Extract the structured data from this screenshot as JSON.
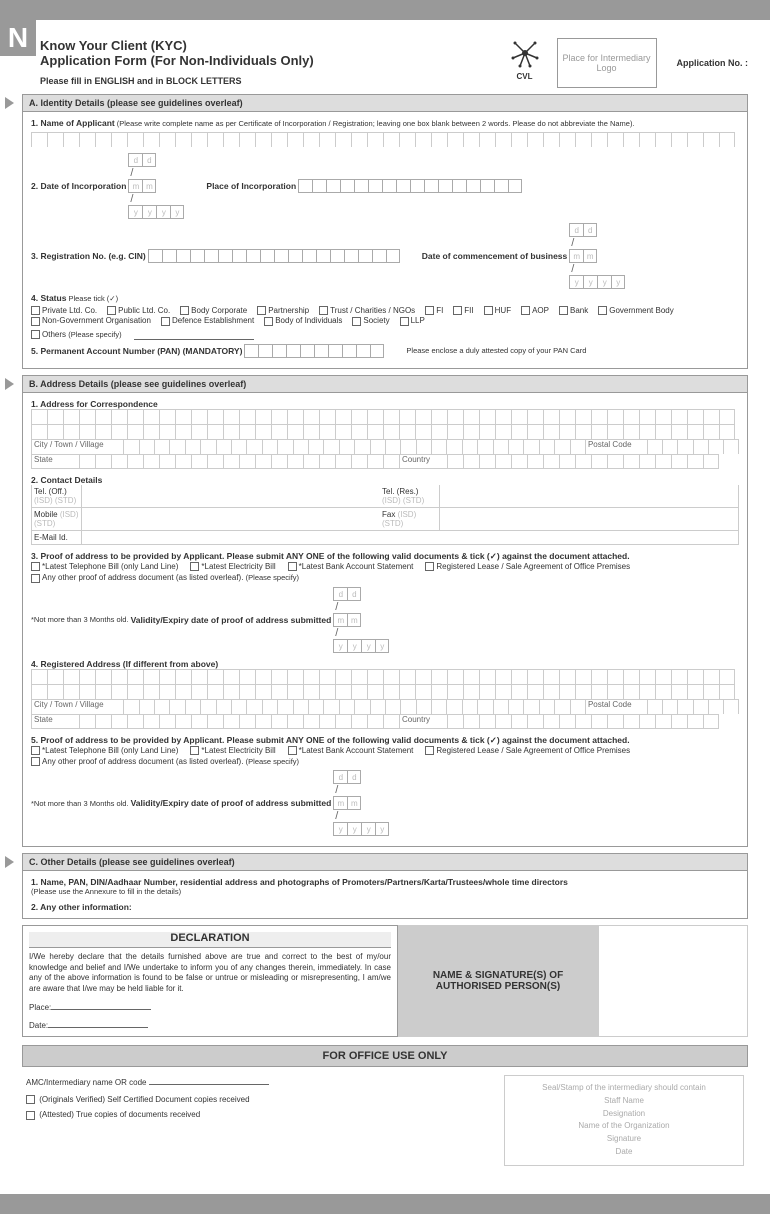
{
  "header": {
    "title": "Know Your Client (KYC)",
    "subtitle": "Application Form  (For Non-Individuals Only)",
    "instruction": "Please fill in ENGLISH and in BLOCK LETTERS",
    "logo_text": "CVL",
    "placeholder": "Place for Intermediary Logo",
    "app_no": "Application No. :"
  },
  "sectionA": {
    "title": "A. Identity Details (please see guidelines overleaf)",
    "f1": "1. Name of Applicant",
    "f1note": "(Please write complete name as per Certificate of Incorporation / Registration; leaving one box blank between 2 words. Please do not abbreviate the Name).",
    "f2": "2. Date of Incorporation",
    "f2b": "Place of Incorporation",
    "f3": "3. Registration No. (e.g. CIN)",
    "f3b": "Date of commencement of business",
    "f4": "4. Status",
    "f4note": "Please tick (✓)",
    "opts": [
      "Private Ltd. Co.",
      "Public Ltd. Co.",
      "Body Corporate",
      "Partnership",
      "Trust / Charities / NGOs",
      "FI",
      "FII",
      "HUF",
      "AOP",
      "Bank",
      "Government Body",
      "Non-Government Organisation",
      "Defence Establishment",
      "Body of Individuals",
      "Society",
      "LLP"
    ],
    "others": "Others",
    "others_note": "(Please specify)",
    "f5": "5. Permanent Account Number (PAN) (MANDATORY)",
    "f5note": "Please enclose a duly attested copy of your PAN Card"
  },
  "sectionB": {
    "title": "B. Address Details (please see guidelines overleaf)",
    "f1": "1. Address for Correspondence",
    "city": "City / Town / Village",
    "postal": "Postal Code",
    "state": "State",
    "country": "Country",
    "f2": "2. Contact Details",
    "tel_off": "Tel. (Off.)",
    "tel_res": "Tel. (Res.)",
    "mobile": "Mobile",
    "fax": "Fax",
    "email": "E-Mail Id.",
    "isd": "(ISD)",
    "std": "(STD)",
    "f3": "3. Proof of address to be provided by Applicant. Please submit ANY ONE of the following valid documents &  tick (✓) against the document attached.",
    "docs": [
      "*Latest Telephone Bill (only Land Line)",
      "*Latest Electricity Bill",
      "*Latest Bank Account Statement",
      "Registered Lease / Sale Agreement of Office Premises",
      "Any other proof of address document (as listed overleaf)."
    ],
    "specify": "(Please specify)",
    "validity_note": "*Not more than 3 Months old.",
    "validity": "Validity/Expiry date of proof of address submitted",
    "f4": "4. Registered Address (If different from above)",
    "f5": "5. Proof of address to be provided by Applicant. Please submit ANY ONE of the following valid documents &  tick (✓) against the document attached."
  },
  "sectionC": {
    "title": "C. Other Details (please see guidelines overleaf)",
    "f1": "1. Name, PAN, DIN/Aadhaar Number, residential address and photographs of Promoters/Partners/Karta/Trustees/whole time directors",
    "f1note": "(Please use the Annexure to fill in the details)",
    "f2": "2. Any other information:"
  },
  "declaration": {
    "title": "DECLARATION",
    "text": "I/We hereby declare that the details furnished above are true and correct to the best of my/our knowledge and belief and I/We undertake to inform you of any changes therein, immediately. In case any of the above information is found to be false or untrue or misleading or misrepresenting, I am/we are aware that I/we may be held liable for it.",
    "place": "Place:",
    "date": "Date:",
    "sig": "NAME & SIGNATURE(S) OF AUTHORISED PERSON(S)"
  },
  "office": {
    "title": "FOR OFFICE USE ONLY",
    "amc": "AMC/Intermediary name OR code",
    "cb1": "(Originals Verified) Self Certified Document copies received",
    "cb2": "(Attested) True copies of documents received",
    "seal_hdr": "Seal/Stamp of the intermediary should contain",
    "lines": [
      "Staff Name",
      "Designation",
      "Name of the Organization",
      "Signature",
      "Date"
    ]
  },
  "date_ph": [
    "d",
    "d",
    "m",
    "m",
    "y",
    "y",
    "y",
    "y"
  ]
}
